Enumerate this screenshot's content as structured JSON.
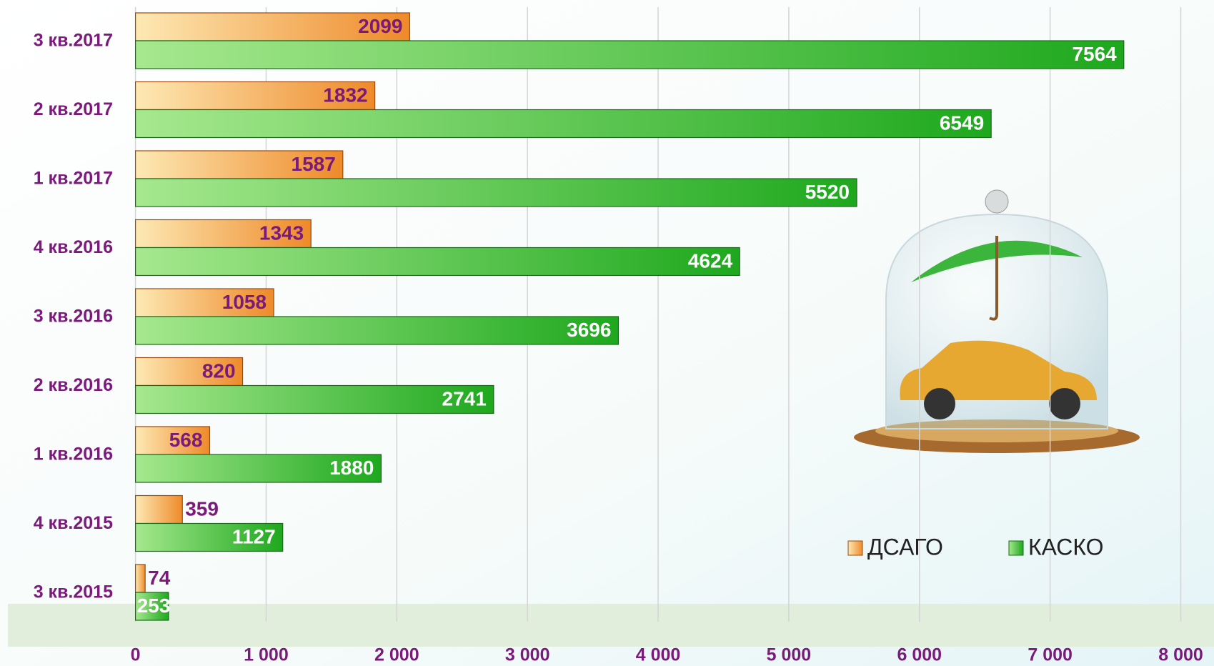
{
  "chart_data": {
    "type": "hbar",
    "categories": [
      "3 кв.2017",
      "2 кв.2017",
      "1 кв.2017",
      "4 кв.2016",
      "3 кв.2016",
      "2 кв.2016",
      "1 кв.2016",
      "4 кв.2015",
      "3 кв.2015"
    ],
    "series": [
      {
        "name": "ДСАГО",
        "color": "#ee8a2a",
        "values": [
          2099,
          1832,
          1587,
          1343,
          1058,
          820,
          568,
          359,
          74
        ]
      },
      {
        "name": "КАСКО",
        "color": "#22aa22",
        "values": [
          7564,
          6549,
          5520,
          4624,
          3696,
          2741,
          1880,
          1127,
          253
        ]
      }
    ],
    "xlim": [
      0,
      8000
    ],
    "xticks": [
      0,
      {
        "value": 1000,
        "label": "1 000"
      },
      {
        "value": 2000,
        "label": "2 000"
      },
      {
        "value": 3000,
        "label": "3 000"
      },
      {
        "value": 4000,
        "label": "4 000"
      },
      {
        "value": 5000,
        "label": "5 000"
      },
      {
        "value": 6000,
        "label": "6 000"
      },
      {
        "value": 7000,
        "label": "7 000"
      },
      {
        "value": 8000,
        "label": "8 000"
      }
    ],
    "grid": true
  }
}
